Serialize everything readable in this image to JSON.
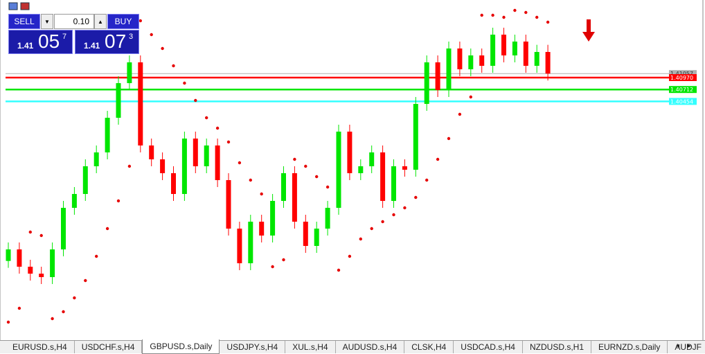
{
  "trade_panel": {
    "sell": "SELL",
    "buy": "BUY",
    "lot": "0.10",
    "bid": {
      "prefix": "1.41",
      "main": "05",
      "pip": "7"
    },
    "ask": {
      "prefix": "1.41",
      "main": "07",
      "pip": "3"
    }
  },
  "chart_data": {
    "type": "candlestick",
    "ylim": [
      1.353,
      1.4265
    ],
    "bull_color": "#00e600",
    "bear_color": "#ff0000",
    "sar_color": "#e60000",
    "candles": [
      [
        1.37,
        1.374,
        1.3685,
        1.3725
      ],
      [
        1.3725,
        1.374,
        1.36725,
        1.36875
      ],
      [
        1.36875,
        1.37025,
        1.36575,
        1.36725
      ],
      [
        1.36725,
        1.36875,
        1.365,
        1.3665
      ],
      [
        1.3665,
        1.374,
        1.365,
        1.3725
      ],
      [
        1.3725,
        1.383,
        1.371,
        1.3815
      ],
      [
        1.3815,
        1.386,
        1.38,
        1.3845
      ],
      [
        1.3845,
        1.392,
        1.383,
        1.3905
      ],
      [
        1.3905,
        1.395,
        1.389,
        1.3935
      ],
      [
        1.3935,
        1.4025,
        1.392,
        1.401
      ],
      [
        1.401,
        1.41,
        1.3995,
        1.4085
      ],
      [
        1.4085,
        1.4145,
        1.407,
        1.413
      ],
      [
        1.413,
        1.4145,
        1.3935,
        1.395
      ],
      [
        1.395,
        1.3965,
        1.3905,
        1.392
      ],
      [
        1.392,
        1.3935,
        1.3875,
        1.389
      ],
      [
        1.389,
        1.3905,
        1.383,
        1.3845
      ],
      [
        1.3845,
        1.398,
        1.383,
        1.3965
      ],
      [
        1.3965,
        1.398,
        1.389,
        1.3905
      ],
      [
        1.3905,
        1.3965,
        1.389,
        1.395
      ],
      [
        1.395,
        1.3965,
        1.386,
        1.3875
      ],
      [
        1.3875,
        1.389,
        1.3755,
        1.377
      ],
      [
        1.377,
        1.3785,
        1.368,
        1.3695
      ],
      [
        1.3695,
        1.38,
        1.368,
        1.3785
      ],
      [
        1.3785,
        1.38,
        1.374,
        1.3755
      ],
      [
        1.3755,
        1.3845,
        1.374,
        1.383
      ],
      [
        1.383,
        1.3905,
        1.3815,
        1.389
      ],
      [
        1.389,
        1.3905,
        1.377,
        1.3785
      ],
      [
        1.3785,
        1.38,
        1.37175,
        1.37325
      ],
      [
        1.37325,
        1.3785,
        1.37175,
        1.377
      ],
      [
        1.377,
        1.383,
        1.3755,
        1.3815
      ],
      [
        1.3815,
        1.3995,
        1.38,
        1.398
      ],
      [
        1.398,
        1.3995,
        1.3875,
        1.389
      ],
      [
        1.389,
        1.392,
        1.3875,
        1.3905
      ],
      [
        1.3905,
        1.395,
        1.389,
        1.3935
      ],
      [
        1.3935,
        1.395,
        1.3815,
        1.383
      ],
      [
        1.383,
        1.392,
        1.3815,
        1.3905
      ],
      [
        1.3905,
        1.392,
        1.38825,
        1.38975
      ],
      [
        1.38975,
        1.4055,
        1.38825,
        1.404
      ],
      [
        1.404,
        1.4145,
        1.4025,
        1.413
      ],
      [
        1.413,
        1.4145,
        1.4055,
        1.407
      ],
      [
        1.407,
        1.4175,
        1.4055,
        1.416
      ],
      [
        1.416,
        1.4175,
        1.41,
        1.4115
      ],
      [
        1.4115,
        1.416,
        1.41,
        1.4145
      ],
      [
        1.4145,
        1.416,
        1.41075,
        1.41225
      ],
      [
        1.41225,
        1.4205,
        1.41075,
        1.419
      ],
      [
        1.419,
        1.4205,
        1.413,
        1.4145
      ],
      [
        1.4145,
        1.419,
        1.413,
        1.4175
      ],
      [
        1.4175,
        1.419,
        1.41075,
        1.41225
      ],
      [
        1.41225,
        1.4168,
        1.41075,
        1.41525
      ],
      [
        1.41525,
        1.4168,
        1.40907,
        1.41057
      ]
    ],
    "sar": [
      1.35675,
      1.35975,
      1.37625,
      1.3755,
      1.3575,
      1.359,
      1.362,
      1.36575,
      1.371,
      1.377,
      1.383,
      1.3905,
      1.422,
      1.419,
      1.416,
      1.41225,
      1.4085,
      1.40475,
      1.401,
      1.39875,
      1.39575,
      1.39125,
      1.3875,
      1.3845,
      1.36875,
      1.37025,
      1.392,
      1.3905,
      1.38825,
      1.386,
      1.368,
      1.371,
      1.37475,
      1.377,
      1.3785,
      1.38,
      1.3815,
      1.38375,
      1.3875,
      1.392,
      1.3965,
      1.40175,
      1.4055,
      1.4232,
      1.4232,
      1.42275,
      1.42425,
      1.4238,
      1.42275,
      1.4217
    ],
    "price_lines": [
      {
        "value": 1.41057,
        "color": "#b0b0b0"
      },
      {
        "value": {
          "value": 1.4097,
          "label": "1.40970"
        },
        "color": "#ff0000"
      },
      {
        "value": 1.40712,
        "color": "#00e600"
      },
      {
        "value": 1.40454,
        "color": "#33ffff"
      }
    ]
  },
  "tabs": [
    "EURUSD.s,H4",
    "USDCHF.s,H4",
    "GBPUSD.s,Daily",
    "USDJPY.s,H4",
    "XUL.s,H4",
    "AUDUSD.s,H4",
    "CLSK,H4",
    "USDCAD.s,H4",
    "NZDUSD.s,H1",
    "EURNZD.s,Daily",
    "AUDJF"
  ],
  "active_tab": 2
}
